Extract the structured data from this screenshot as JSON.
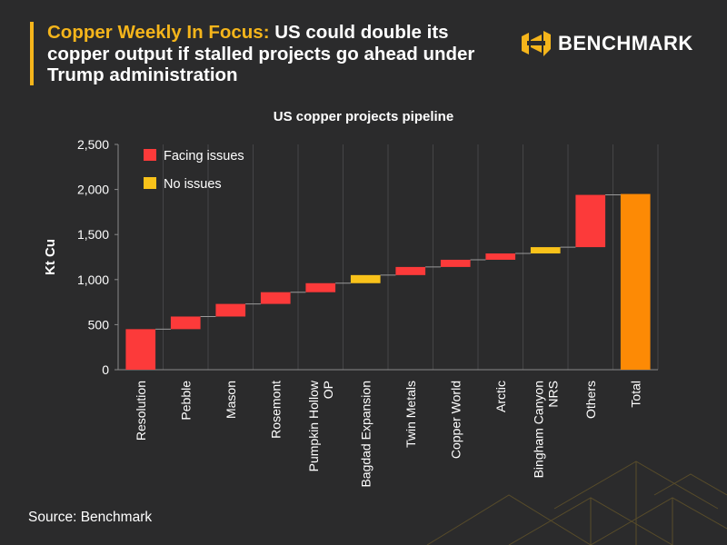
{
  "header": {
    "title_accent": "Copper Weekly In Focus:",
    "title_rest": " US could double its copper output if stalled projects go ahead under Trump administration"
  },
  "brand": {
    "name": "BENCHMARK"
  },
  "source": "Source: Benchmark",
  "colors": {
    "background": "#2b2b2c",
    "accent": "#f5b51b",
    "facing_issues": "#fc3a3a",
    "no_issues": "#f9c21a",
    "total": "#fd8a05"
  },
  "chart_data": {
    "type": "waterfall",
    "title": "US copper projects pipeline",
    "ylabel": "Kt  Cu",
    "xlabel": "",
    "ylim": [
      0,
      2500
    ],
    "yticks": [
      0,
      500,
      1000,
      1500,
      2000,
      2500
    ],
    "ytick_labels": [
      "0",
      "500",
      "1,000",
      "1,500",
      "2,000",
      "2,500"
    ],
    "grid": "vertical",
    "legend_position": "top-left",
    "legend": [
      {
        "label": "Facing issues",
        "key": "facing_issues"
      },
      {
        "label": "No issues",
        "key": "no_issues"
      }
    ],
    "categories": [
      "Resolution",
      "Pebble",
      "Mason",
      "Rosemont",
      "Pumpkin Hollow OP",
      "Bagdad Expansion",
      "Twin Metals",
      "Copper World",
      "Arctic",
      "Bingham Canyon NRS",
      "Others",
      "Total"
    ],
    "label_lines": [
      [
        "Resolution"
      ],
      [
        "Pebble"
      ],
      [
        "Mason"
      ],
      [
        "Rosemont"
      ],
      [
        "Pumpkin Hollow",
        "OP"
      ],
      [
        "Bagdad Expansion"
      ],
      [
        "Twin Metals"
      ],
      [
        "Copper World"
      ],
      [
        "Arctic"
      ],
      [
        "Bingham Canyon",
        "NRS"
      ],
      [
        "Others"
      ],
      [
        "Total"
      ]
    ],
    "values": [
      450,
      140,
      140,
      130,
      100,
      90,
      90,
      80,
      70,
      70,
      580,
      1950
    ],
    "status": [
      "facing_issues",
      "facing_issues",
      "facing_issues",
      "facing_issues",
      "facing_issues",
      "no_issues",
      "facing_issues",
      "facing_issues",
      "facing_issues",
      "no_issues",
      "facing_issues",
      "total"
    ]
  }
}
